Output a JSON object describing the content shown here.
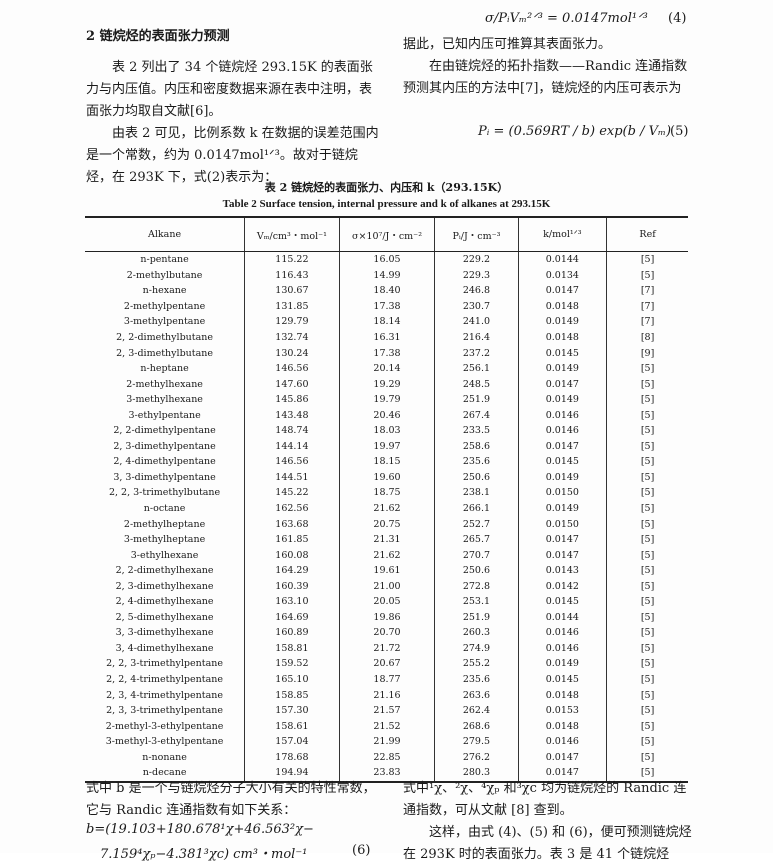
{
  "left_col": {
    "heading": "2  链烷烃的表面张力预测",
    "p1": "表 2 列出了 34 个链烷烃 293.15K 的表面张力与内压值。内压和密度数据来源在表中注明，表面张力均取自文献[6]。",
    "p2": "由表 2 可见，比例系数 k 在数据的误差范围内是一个常数，约为 0.0147mol¹ᐟ³。故对于链烷烃，在 293K 下，式(2)表示为："
  },
  "right_col": {
    "eq4": "σ/PᵢVₘ²ᐟ³ = 0.0147mol¹ᐟ³",
    "eq4_num": "(4)",
    "p1": "据此，已知内压可推算其表面张力。",
    "p2": "在由链烷烃的拓扑指数——Randic 连通指数预测其内压的方法中[7]，链烷烃的内压可表示为",
    "eq5": "Pᵢ = (0.569RT / b) exp(b / Vₘ)",
    "eq5_num": "(5)"
  },
  "table": {
    "caption_cn": "表 2  链烷烃的表面张力、内压和 k（293.15K）",
    "caption_en": "Table 2   Surface tension, internal pressure and k of alkanes at 293.15K",
    "headers": [
      "Alkane",
      "Vₘ/cm³・mol⁻¹",
      "σ×10⁷/J・cm⁻²",
      "Pᵢ/J・cm⁻³",
      "k/mol¹ᐟ³",
      "Ref"
    ],
    "rows": [
      [
        "n-pentane",
        "115.22",
        "16.05",
        "229.2",
        "0.0144",
        "[5]"
      ],
      [
        "2-methylbutane",
        "116.43",
        "14.99",
        "229.3",
        "0.0134",
        "[5]"
      ],
      [
        "n-hexane",
        "130.67",
        "18.40",
        "246.8",
        "0.0147",
        "[7]"
      ],
      [
        "2-methylpentane",
        "131.85",
        "17.38",
        "230.7",
        "0.0148",
        "[7]"
      ],
      [
        "3-methylpentane",
        "129.79",
        "18.14",
        "241.0",
        "0.0149",
        "[7]"
      ],
      [
        "2, 2-dimethylbutane",
        "132.74",
        "16.31",
        "216.4",
        "0.0148",
        "[8]"
      ],
      [
        "2, 3-dimethylbutane",
        "130.24",
        "17.38",
        "237.2",
        "0.0145",
        "[9]"
      ],
      [
        "n-heptane",
        "146.56",
        "20.14",
        "256.1",
        "0.0149",
        "[5]"
      ],
      [
        "2-methylhexane",
        "147.60",
        "19.29",
        "248.5",
        "0.0147",
        "[5]"
      ],
      [
        "3-methylhexane",
        "145.86",
        "19.79",
        "251.9",
        "0.0149",
        "[5]"
      ],
      [
        "3-ethylpentane",
        "143.48",
        "20.46",
        "267.4",
        "0.0146",
        "[5]"
      ],
      [
        "2, 2-dimethylpentane",
        "148.74",
        "18.03",
        "233.5",
        "0.0146",
        "[5]"
      ],
      [
        "2, 3-dimethylpentane",
        "144.14",
        "19.97",
        "258.6",
        "0.0147",
        "[5]"
      ],
      [
        "2, 4-dimethylpentane",
        "146.56",
        "18.15",
        "235.6",
        "0.0145",
        "[5]"
      ],
      [
        "3, 3-dimethylpentane",
        "144.51",
        "19.60",
        "250.6",
        "0.0149",
        "[5]"
      ],
      [
        "2, 2, 3-trimethylbutane",
        "145.22",
        "18.75",
        "238.1",
        "0.0150",
        "[5]"
      ],
      [
        "n-octane",
        "162.56",
        "21.62",
        "266.1",
        "0.0149",
        "[5]"
      ],
      [
        "2-methylheptane",
        "163.68",
        "20.75",
        "252.7",
        "0.0150",
        "[5]"
      ],
      [
        "3-methylheptane",
        "161.85",
        "21.31",
        "265.7",
        "0.0147",
        "[5]"
      ],
      [
        "3-ethylhexane",
        "160.08",
        "21.62",
        "270.7",
        "0.0147",
        "[5]"
      ],
      [
        "2, 2-dimethylhexane",
        "164.29",
        "19.61",
        "250.6",
        "0.0143",
        "[5]"
      ],
      [
        "2, 3-dimethylhexane",
        "160.39",
        "21.00",
        "272.8",
        "0.0142",
        "[5]"
      ],
      [
        "2, 4-dimethylhexane",
        "163.10",
        "20.05",
        "253.1",
        "0.0145",
        "[5]"
      ],
      [
        "2, 5-dimethylhexane",
        "164.69",
        "19.86",
        "251.9",
        "0.0144",
        "[5]"
      ],
      [
        "3, 3-dimethylhexane",
        "160.89",
        "20.70",
        "260.3",
        "0.0146",
        "[5]"
      ],
      [
        "3, 4-dimethylhexane",
        "158.81",
        "21.72",
        "274.9",
        "0.0146",
        "[5]"
      ],
      [
        "2, 2, 3-trimethylpentane",
        "159.52",
        "20.67",
        "255.2",
        "0.0149",
        "[5]"
      ],
      [
        "2, 2, 4-trimethylpentane",
        "165.10",
        "18.77",
        "235.6",
        "0.0145",
        "[5]"
      ],
      [
        "2, 3, 4-trimethylpentane",
        "158.85",
        "21.16",
        "263.6",
        "0.0148",
        "[5]"
      ],
      [
        "2, 3, 3-trimethylpentane",
        "157.30",
        "21.57",
        "262.4",
        "0.0153",
        "[5]"
      ],
      [
        "2-methyl-3-ethylpentane",
        "158.61",
        "21.52",
        "268.6",
        "0.0148",
        "[5]"
      ],
      [
        "3-methyl-3-ethylpentane",
        "157.04",
        "21.99",
        "279.5",
        "0.0146",
        "[5]"
      ],
      [
        "n-nonane",
        "178.68",
        "22.85",
        "276.2",
        "0.0147",
        "[5]"
      ],
      [
        "n-decane",
        "194.94",
        "23.83",
        "280.3",
        "0.0147",
        "[5]"
      ]
    ]
  },
  "bottom_left": {
    "p1": "式中 b 是一个与链烷烃分子大小有关的特性常数，它与 Randic 连通指数有如下关系：",
    "eq6a": "b=(19.103+180.678¹χ+46.563²χ−",
    "eq6b": "7.159⁴χₚ−4.381³χc) cm³・mol⁻¹",
    "eq6_num": "(6)"
  },
  "bottom_right": {
    "p1": "式中¹χ、²χ、⁴χₚ 和³χc 均为链烷烃的 Randic 连通指数，可从文献 [8] 查到。",
    "p2": "这样，由式 (4)、(5) 和 (6)，便可预测链烷烃在 293K 时的表面张力。表 3 是 41 个链烷烃"
  }
}
